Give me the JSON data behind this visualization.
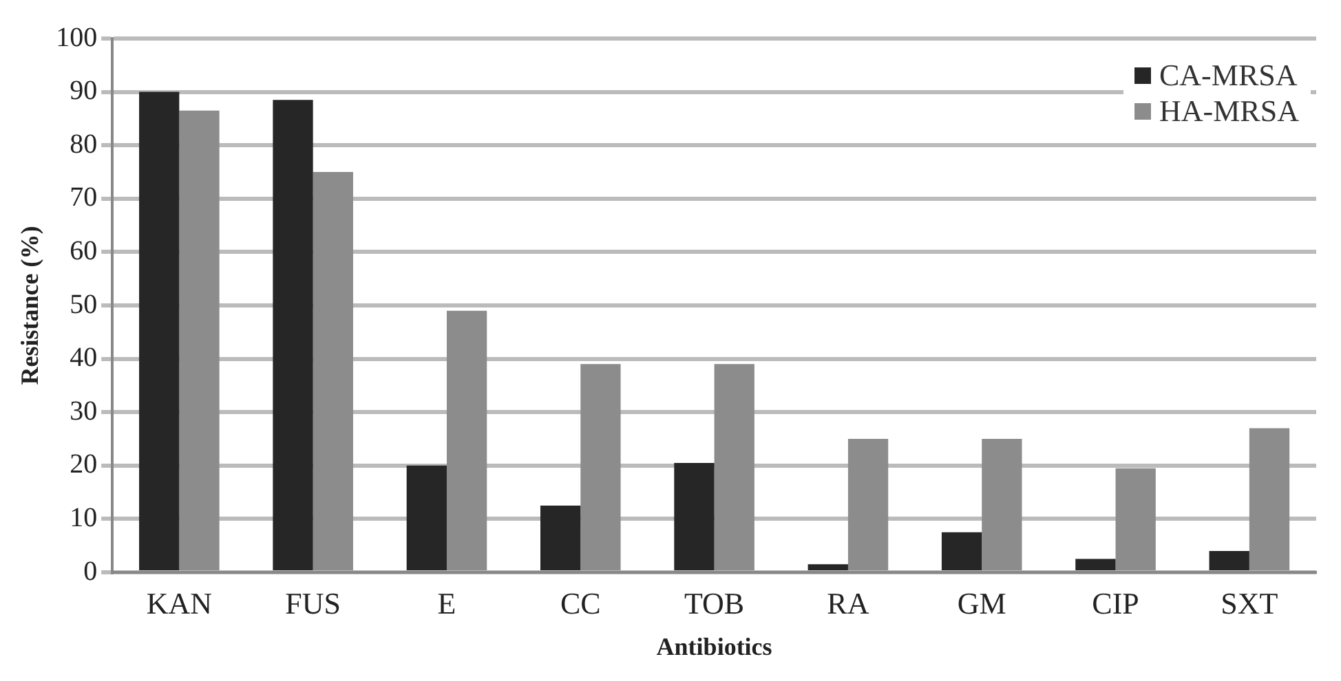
{
  "chart_data": {
    "type": "bar",
    "xlabel": "Antibiotics",
    "ylabel": "Resistance (%)",
    "categories": [
      "KAN",
      "FUS",
      "E",
      "CC",
      "TOB",
      "RA",
      "GM",
      "CIP",
      "SXT"
    ],
    "series": [
      {
        "name": "CA-MRSA",
        "color": "#262626",
        "values": [
          90,
          88.5,
          20,
          12.5,
          20.5,
          1.5,
          7.5,
          2.5,
          4
        ]
      },
      {
        "name": "HA-MRSA",
        "color": "#8c8c8c",
        "values": [
          86.5,
          75,
          49,
          39,
          39,
          25,
          25,
          19.5,
          27
        ]
      }
    ],
    "ylim": [
      0,
      100
    ],
    "yticks": [
      0,
      10,
      20,
      30,
      40,
      50,
      60,
      70,
      80,
      90,
      100
    ],
    "grid": "y",
    "legend": "top right"
  }
}
